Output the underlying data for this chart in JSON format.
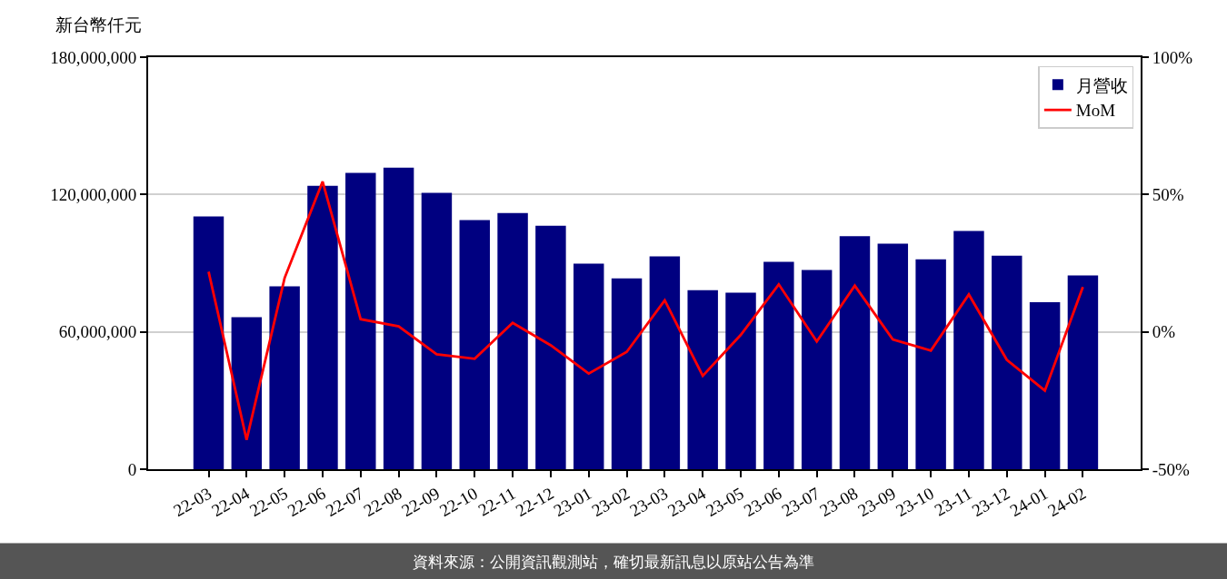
{
  "chart_data": {
    "type": "bar",
    "categories": [
      "22-03",
      "22-04",
      "22-05",
      "22-06",
      "22-07",
      "22-08",
      "22-09",
      "22-10",
      "22-11",
      "22-12",
      "23-01",
      "23-02",
      "23-03",
      "23-04",
      "23-05",
      "23-06",
      "23-07",
      "23-08",
      "23-09",
      "23-10",
      "23-11",
      "23-12",
      "24-01",
      "24-02"
    ],
    "series": [
      {
        "name": "月營收",
        "color": "#000080",
        "values": [
          110400000,
          66400000,
          79900000,
          123800000,
          129400000,
          131700000,
          120700000,
          108800000,
          111900000,
          106400000,
          89800000,
          83400000,
          93000000,
          78200000,
          77100000,
          90600000,
          87000000,
          101800000,
          98500000,
          91700000,
          104100000,
          93300000,
          73000000,
          84600000
        ]
      },
      {
        "name": "MoM",
        "type": "line",
        "axis": "y2",
        "color": "#ff0000",
        "values": [
          21.9,
          -39.3,
          19.6,
          54.7,
          4.6,
          2.0,
          -8.2,
          -9.8,
          3.3,
          -4.9,
          -15.2,
          -7.3,
          11.5,
          -16.0,
          -1.1,
          17.3,
          -3.5,
          16.8,
          -2.8,
          -6.8,
          13.6,
          -10.2,
          -21.4,
          16.3
        ]
      }
    ],
    "ylabel": "新台幣仟元",
    "ylim": [
      0,
      180000000
    ],
    "yticks": [
      {
        "value": 0,
        "label": "0"
      },
      {
        "value": 60000000,
        "label": "60,000,000"
      },
      {
        "value": 120000000,
        "label": "120,000,000"
      },
      {
        "value": 180000000,
        "label": "180,000,000"
      }
    ],
    "y2lim": [
      -50,
      100
    ],
    "y2ticks": [
      {
        "value": -50,
        "label": "-50%"
      },
      {
        "value": 0,
        "label": "0%"
      },
      {
        "value": 50,
        "label": "50%"
      },
      {
        "value": 100,
        "label": "100%"
      }
    ],
    "grid": "y",
    "legend": "top right",
    "line_style": "solid",
    "annotations": [
      "資料來源：公開資訊觀測站，確切最新訊息以原站公告為準"
    ]
  }
}
